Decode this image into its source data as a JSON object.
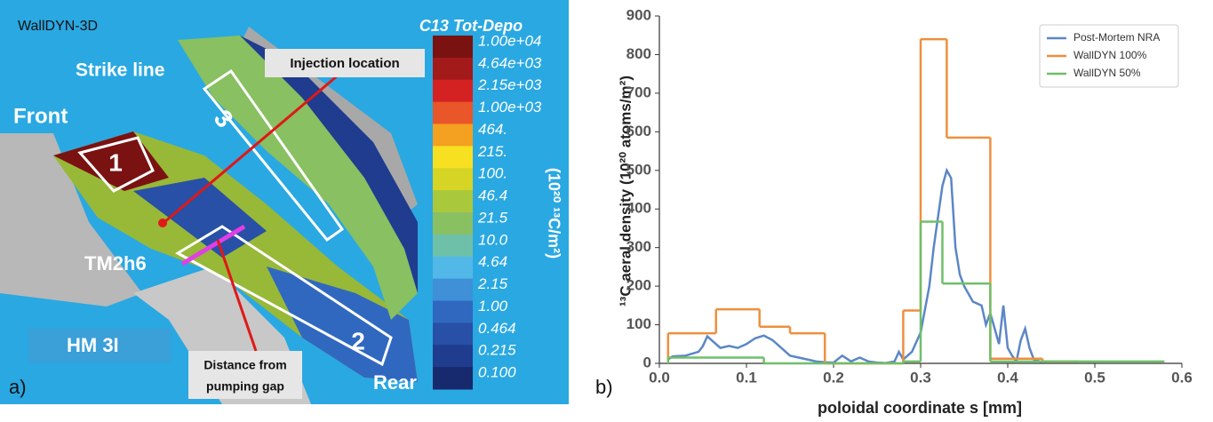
{
  "panel_a": {
    "label": "a)",
    "header": "WallDYN-3D",
    "colorbar": {
      "title": "C13 Tot-Depo",
      "unit": "(10²⁰ ¹³C/m²)",
      "labels": [
        "1.00e+04",
        "4.64e+03",
        "2.15e+03",
        "1.00e+03",
        "464.",
        "215.",
        "100.",
        "46.4",
        "21.5",
        "10.0",
        "4.64",
        "2.15",
        "1.00",
        "0.464",
        "0.215",
        "0.100"
      ],
      "colors": [
        "#7a1212",
        "#a31a1a",
        "#d42222",
        "#e8562a",
        "#f4a020",
        "#f7e022",
        "#d6d424",
        "#a9c83c",
        "#88c062",
        "#6fc0a8",
        "#52b8e8",
        "#3f90d6",
        "#3068c0",
        "#2850a6",
        "#1f3c8e",
        "#172a6e"
      ]
    },
    "annotations": {
      "strike_line": "Strike line",
      "front": "Front",
      "injection": "Injection location",
      "tile": "TM2h6",
      "hm": "HM 3I",
      "distance": [
        "Distance from",
        "pumping gap"
      ],
      "rear": "Rear",
      "region_1": "1",
      "region_2": "2",
      "region_3": "3"
    }
  },
  "chart_data": {
    "type": "line",
    "panel_label": "b)",
    "x_label": "poloidal coordinate s [mm]",
    "y_label": "¹³C aeral density (10²⁰ atoms/m²)",
    "xlim": [
      0,
      0.6
    ],
    "ylim": [
      0,
      900
    ],
    "xticks": [
      {
        "value": 0,
        "label": "0.0"
      },
      0.1,
      0.2,
      0.3,
      0.4,
      0.5,
      0.6
    ],
    "yticks": [
      0,
      100,
      200,
      300,
      400,
      500,
      600,
      700,
      800,
      900
    ],
    "legend": "upper right",
    "series": [
      {
        "name": "Post-Mortem NRA",
        "color": "#5b87c6",
        "x": [
          0.01,
          0.015,
          0.03,
          0.045,
          0.05,
          0.055,
          0.06,
          0.07,
          0.08,
          0.09,
          0.1,
          0.11,
          0.12,
          0.13,
          0.14,
          0.15,
          0.16,
          0.17,
          0.18,
          0.19,
          0.2,
          0.21,
          0.22,
          0.23,
          0.24,
          0.25,
          0.26,
          0.27,
          0.275,
          0.28,
          0.29,
          0.3,
          0.31,
          0.315,
          0.32,
          0.325,
          0.33,
          0.335,
          0.34,
          0.345,
          0.35,
          0.36,
          0.37,
          0.375,
          0.38,
          0.385,
          0.39,
          0.395,
          0.4,
          0.405,
          0.41,
          0.415,
          0.42,
          0.425,
          0.43,
          0.44
        ],
        "values": [
          10,
          18,
          20,
          30,
          45,
          70,
          60,
          40,
          45,
          40,
          50,
          65,
          72,
          60,
          40,
          20,
          15,
          10,
          5,
          3,
          2,
          20,
          5,
          15,
          5,
          2,
          1,
          5,
          30,
          10,
          30,
          80,
          200,
          300,
          380,
          460,
          500,
          480,
          300,
          230,
          200,
          160,
          150,
          100,
          130,
          90,
          50,
          150,
          40,
          20,
          5,
          60,
          90,
          40,
          10,
          3
        ]
      },
      {
        "name": "WallDYN 100%",
        "color": "#ee8f3e",
        "step": true,
        "bins": [
          0.01,
          0.065,
          0.115,
          0.15,
          0.19,
          0.28,
          0.3,
          0.33,
          0.38,
          0.44,
          0.48
        ],
        "values": [
          78,
          140,
          95,
          78,
          0,
          137,
          840,
          585,
          12,
          5
        ]
      },
      {
        "name": "WallDYN 50%",
        "color": "#6fbf6a",
        "step": true,
        "bins": [
          0.01,
          0.12,
          0.28,
          0.3,
          0.325,
          0.38,
          0.58
        ],
        "values": [
          15,
          0,
          5,
          367,
          207,
          5
        ]
      }
    ]
  }
}
